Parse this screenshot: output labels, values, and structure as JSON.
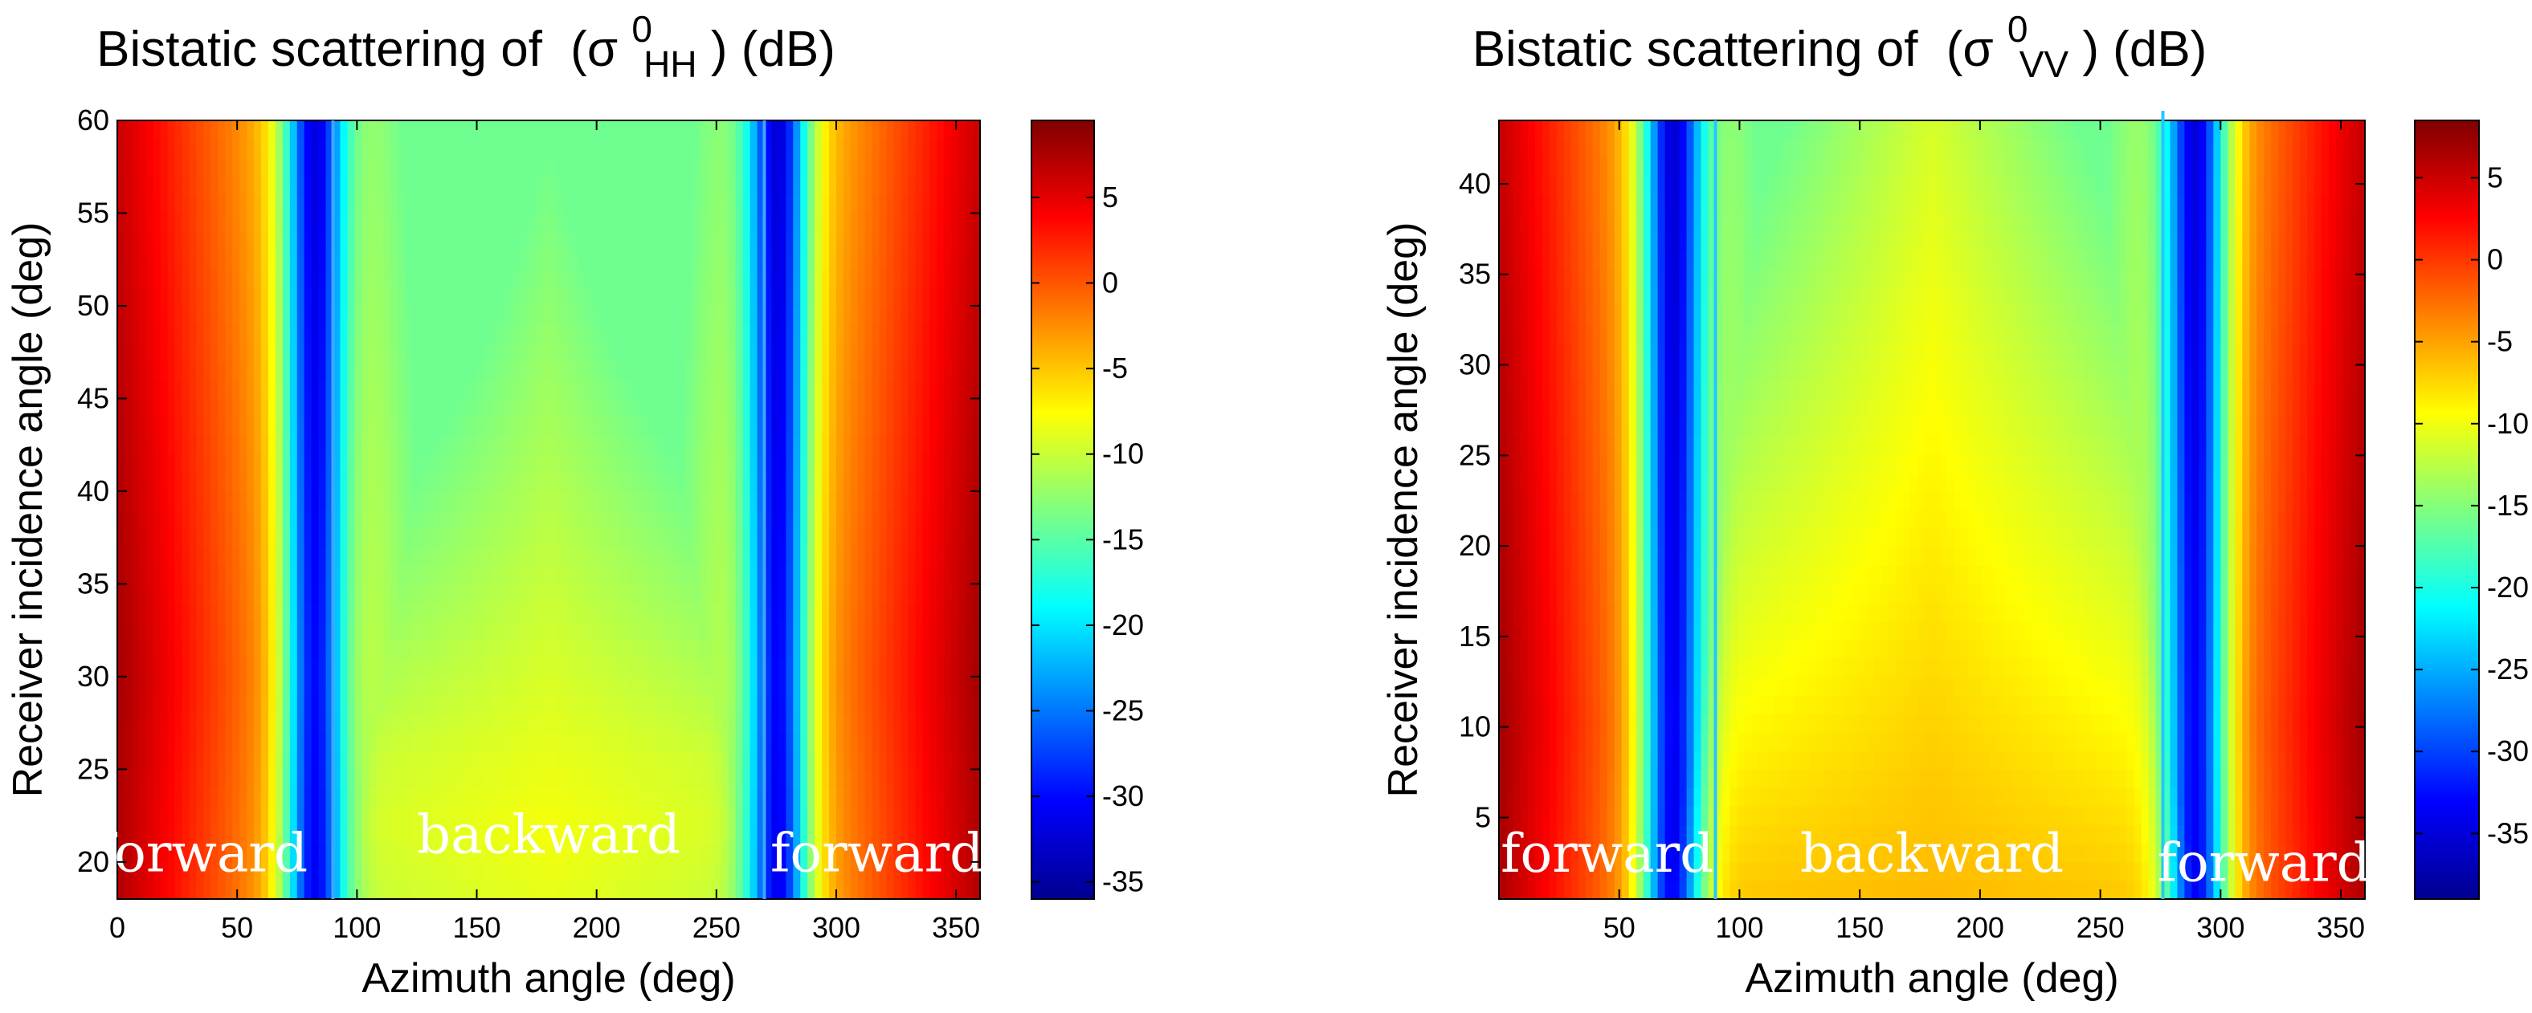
{
  "figure": {
    "description_source": "two side-by-side bistatic scattering heatmaps"
  },
  "chart_data": [
    {
      "type": "heatmap",
      "title_prefix": "Bistatic scattering of",
      "title_sigma": "(σ",
      "title_sup": "0",
      "title_sub": "HH",
      "title_suffix": ") (dB)",
      "xlabel": "Azimuth angle (deg)",
      "ylabel": "Receiver incidence angle (deg)",
      "xlim": [
        0,
        360
      ],
      "ylim": [
        18,
        60
      ],
      "xticks": [
        0,
        50,
        100,
        150,
        200,
        250,
        300,
        350
      ],
      "yticks": [
        20,
        25,
        30,
        35,
        40,
        45,
        50,
        55,
        60
      ],
      "colorbar": {
        "clim": [
          -36,
          9.5
        ],
        "ticks": [
          5,
          0,
          -5,
          -10,
          -15,
          -20,
          -25,
          -30,
          -35
        ]
      },
      "value_range_db": [
        -35,
        9
      ],
      "dark_minimum_azimuths": [
        82,
        276
      ],
      "vertical_lines": [
        90,
        270
      ],
      "region_labels": [
        {
          "text": "forward",
          "x": 35,
          "y": 19.5
        },
        {
          "text": "backward",
          "x": 180,
          "y": 20.5
        },
        {
          "text": "forward",
          "x": 317,
          "y": 19.5
        }
      ]
    },
    {
      "type": "heatmap",
      "title_prefix": "Bistatic scattering of",
      "title_sigma": "(σ",
      "title_sup": "0",
      "title_sub": "VV",
      "title_suffix": ") (dB)",
      "xlabel": "Azimuth angle (deg)",
      "ylabel": "Receiver incidence angle (deg)",
      "xlim": [
        0,
        360
      ],
      "ylim": [
        0.5,
        43.5
      ],
      "xticks": [
        50,
        100,
        150,
        200,
        250,
        300,
        350
      ],
      "yticks": [
        5,
        10,
        15,
        20,
        25,
        30,
        35,
        40
      ],
      "colorbar": {
        "clim": [
          -39,
          8.5
        ],
        "ticks": [
          5,
          0,
          -5,
          -10,
          -15,
          -20,
          -25,
          -30,
          -35
        ]
      },
      "value_range_db": [
        -38,
        8
      ],
      "dark_minimum_azimuths": [
        72,
        290
      ],
      "vertical_lines": [
        90,
        276
      ],
      "region_labels": [
        {
          "text": "forward",
          "x": 45,
          "y": 2
        },
        {
          "text": "backward",
          "x": 180,
          "y": 2
        },
        {
          "text": "forward",
          "x": 318,
          "y": 1.5
        }
      ]
    }
  ]
}
